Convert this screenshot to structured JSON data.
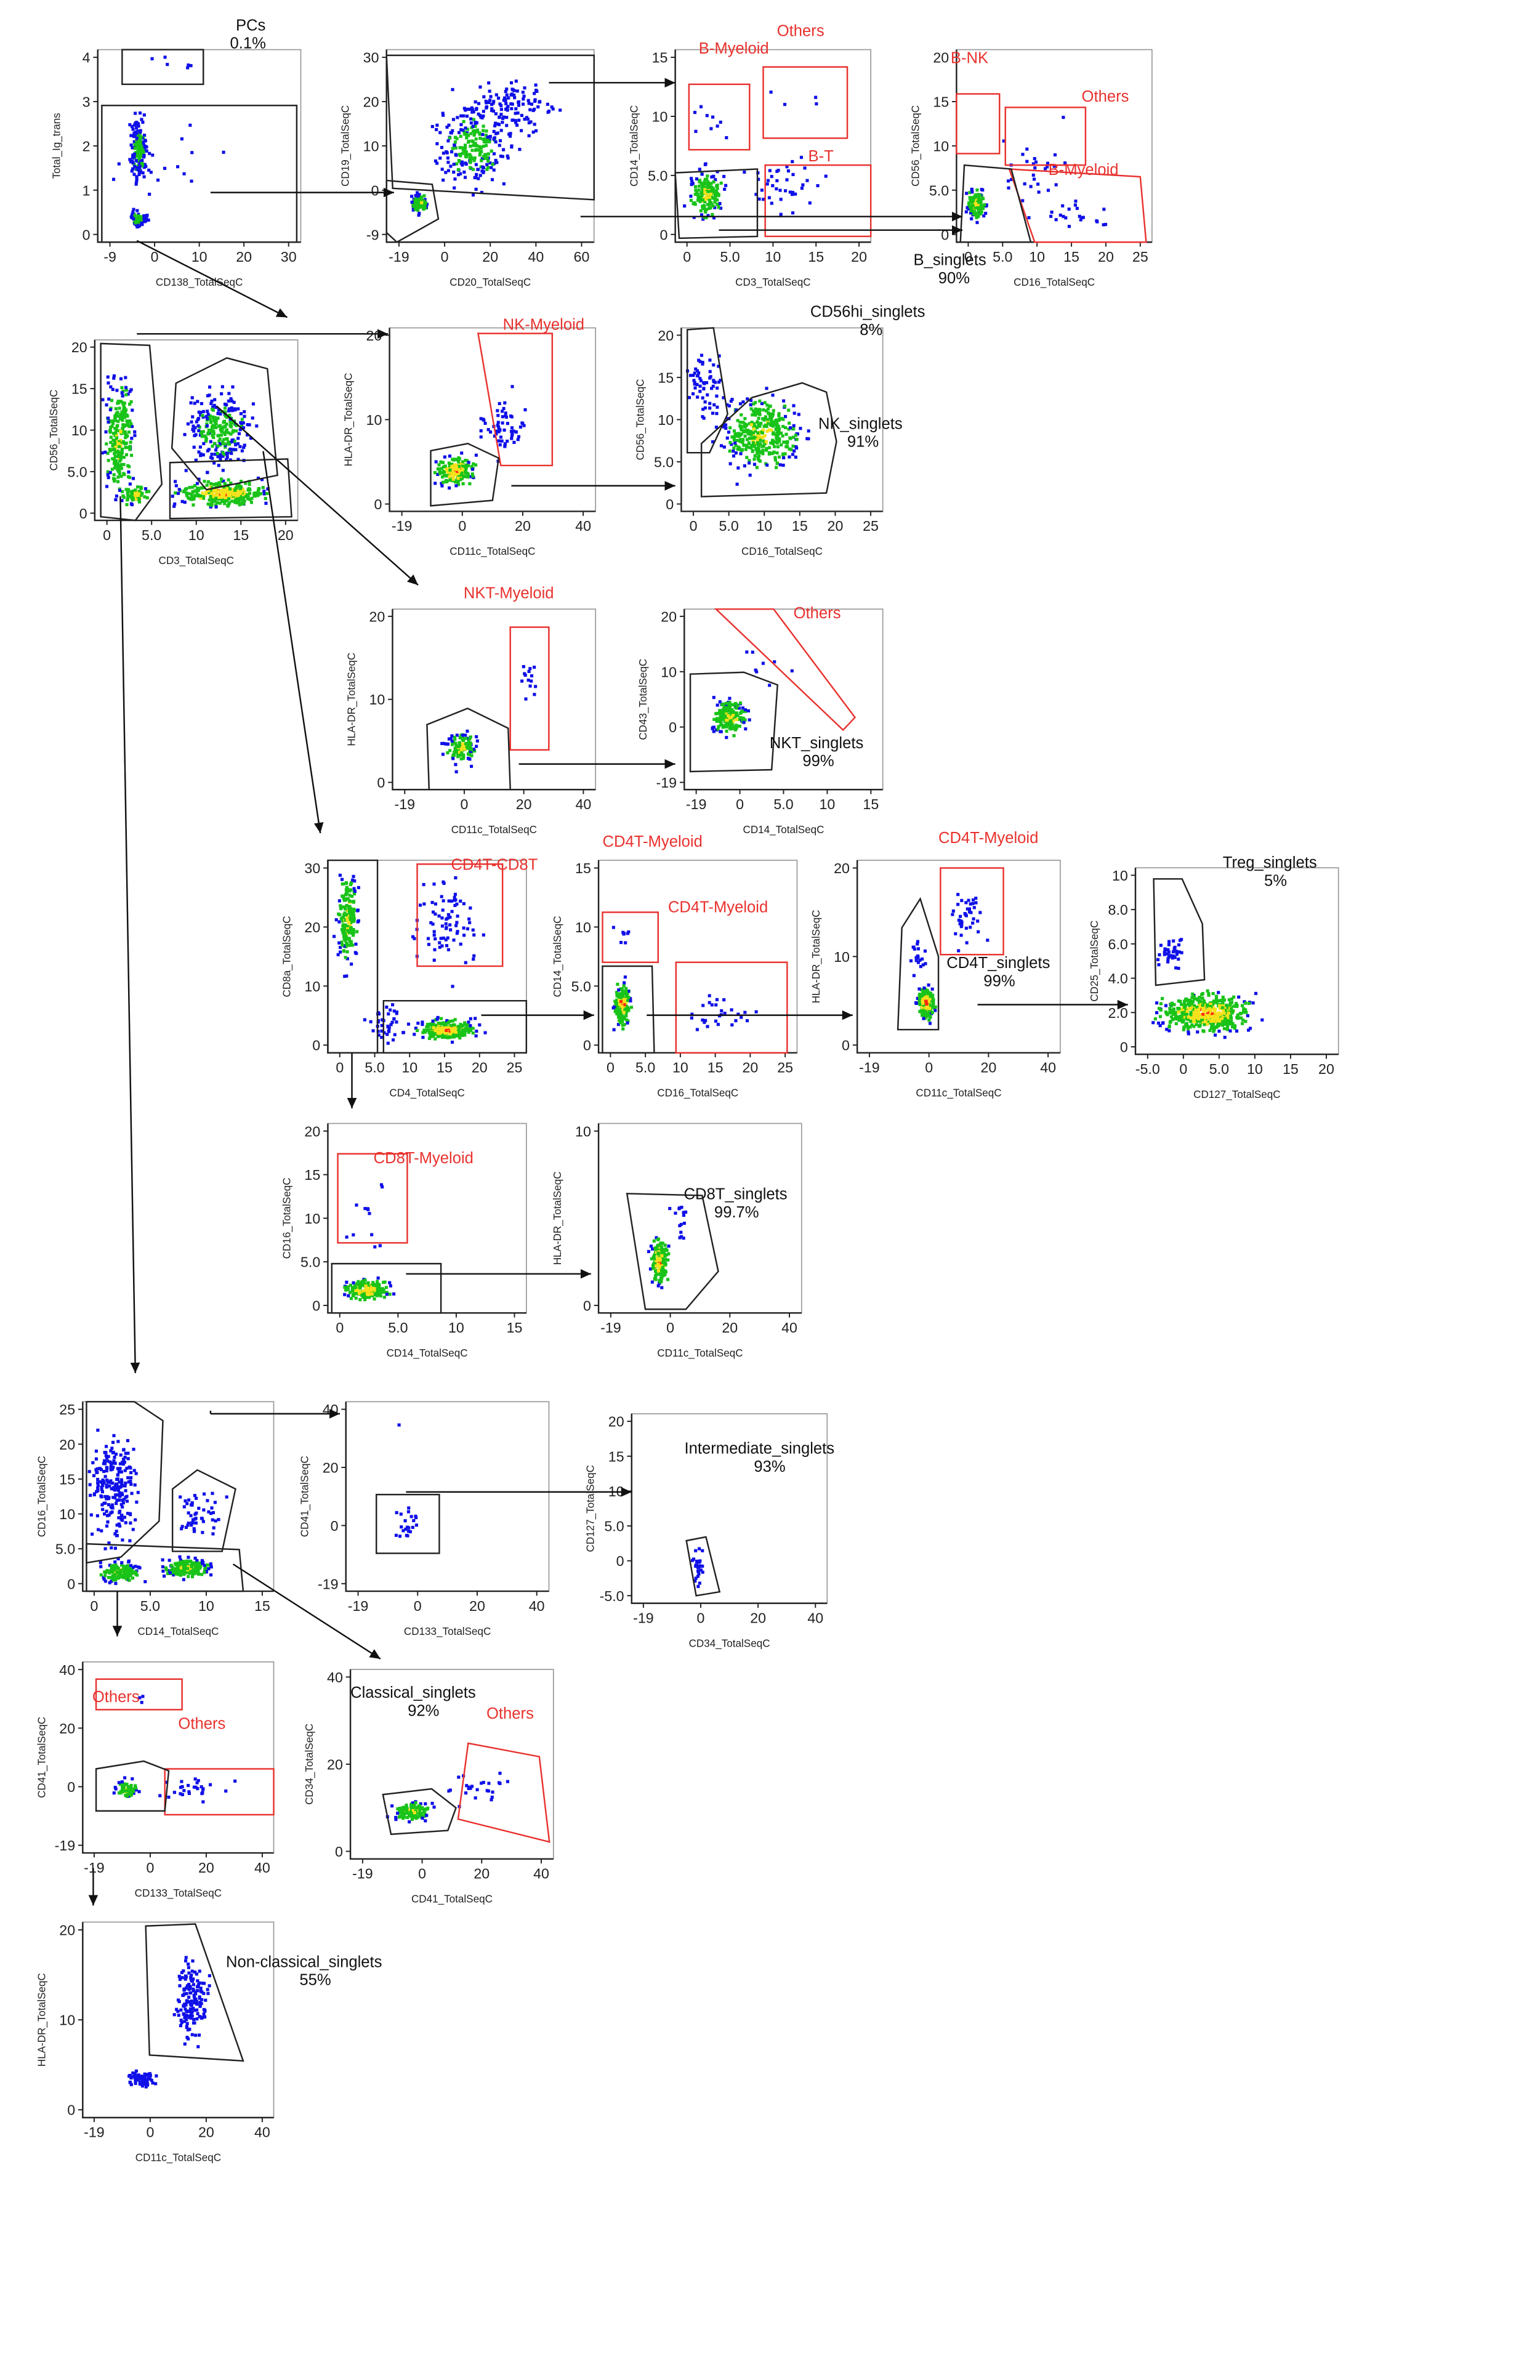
{
  "colors": {
    "gate": "#222222",
    "alt_gate": "#e8322e",
    "dot": "#1010e8",
    "dense_mid": "#19c319",
    "dense_hi": "#f6e21c",
    "dense_top": "#ff2a10",
    "axis": "#222222",
    "frame": "#9a9a9a"
  },
  "panels": [
    {
      "id": "pcs",
      "xlabel": "CD138_TotalSeqC",
      "ylabel": "Total_Ig_trans",
      "xticks": [
        "-9",
        "0",
        "10",
        "20",
        "30"
      ],
      "yticks": [
        "4",
        "3",
        "2",
        "1",
        "0"
      ],
      "gates": [
        {
          "label": "PCs",
          "pct": "0.1%",
          "red": false
        },
        {
          "label": "",
          "pct": "",
          "red": false
        }
      ]
    },
    {
      "id": "b-cd19",
      "xlabel": "CD20_TotalSeqC",
      "ylabel": "CD19_TotalSeqC",
      "xticks": [
        "-19",
        "0",
        "20",
        "40",
        "60"
      ],
      "yticks": [
        "30",
        "20",
        "10",
        "0",
        "-9"
      ],
      "gates": [
        {
          "label": "",
          "pct": "",
          "red": false
        },
        {
          "label": "",
          "pct": "",
          "red": false
        }
      ]
    },
    {
      "id": "b-cd14",
      "xlabel": "CD3_TotalSeqC",
      "ylabel": "CD14_TotalSeqC",
      "xticks": [
        "0",
        "5.0",
        "10",
        "15",
        "20"
      ],
      "yticks": [
        "15",
        "10",
        "5.0",
        "0"
      ],
      "gates": [
        {
          "label": "B-Myeloid",
          "pct": "",
          "red": true
        },
        {
          "label": "Others",
          "pct": "",
          "red": true
        },
        {
          "label": "B-T",
          "pct": "",
          "red": true
        },
        {
          "label": "",
          "pct": "",
          "red": false
        }
      ]
    },
    {
      "id": "b-cd56",
      "xlabel": "CD16_TotalSeqC",
      "ylabel": "CD56_TotalSeqC",
      "xticks": [
        "0",
        "5.0",
        "10",
        "15",
        "20",
        "25"
      ],
      "yticks": [
        "20",
        "15",
        "10",
        "5.0",
        "0"
      ],
      "gates": [
        {
          "label": "B-NK",
          "pct": "",
          "red": true
        },
        {
          "label": "Others",
          "pct": "",
          "red": true
        },
        {
          "label": "B-Myeloid",
          "pct": "",
          "red": true
        },
        {
          "label": "B_singlets",
          "pct": "90%",
          "red": false
        }
      ]
    },
    {
      "id": "t-cd56",
      "xlabel": "CD3_TotalSeqC",
      "ylabel": "CD56_TotalSeqC",
      "xticks": [
        "0",
        "5.0",
        "10",
        "15",
        "20"
      ],
      "yticks": [
        "20",
        "15",
        "10",
        "5.0",
        "0"
      ],
      "gates": [
        {
          "label": "",
          "pct": "",
          "red": false
        },
        {
          "label": "",
          "pct": "",
          "red": false
        },
        {
          "label": "",
          "pct": "",
          "red": false
        }
      ]
    },
    {
      "id": "nk-hladr",
      "xlabel": "CD11c_TotalSeqC",
      "ylabel": "HLA-DR_TotalSeqC",
      "xticks": [
        "-19",
        "0",
        "20",
        "40"
      ],
      "yticks": [
        "20",
        "10",
        "0"
      ],
      "gates": [
        {
          "label": "NK-Myeloid",
          "pct": "",
          "red": true
        },
        {
          "label": "",
          "pct": "",
          "red": false
        }
      ]
    },
    {
      "id": "nk-cd56",
      "xlabel": "CD16_TotalSeqC",
      "ylabel": "CD56_TotalSeqC",
      "xticks": [
        "0",
        "5.0",
        "10",
        "15",
        "20",
        "25"
      ],
      "yticks": [
        "20",
        "15",
        "10",
        "5.0",
        "0"
      ],
      "gates": [
        {
          "label": "CD56hi_singlets",
          "pct": "8%",
          "red": false
        },
        {
          "label": "NK_singlets",
          "pct": "91%",
          "red": false
        }
      ]
    },
    {
      "id": "nkt-hladr",
      "xlabel": "CD11c_TotalSeqC",
      "ylabel": "HLA-DR_TotalSeqC",
      "xticks": [
        "-19",
        "0",
        "20",
        "40"
      ],
      "yticks": [
        "20",
        "10",
        "0"
      ],
      "gates": [
        {
          "label": "NKT-Myeloid",
          "pct": "",
          "red": true
        },
        {
          "label": "",
          "pct": "",
          "red": false
        }
      ]
    },
    {
      "id": "nkt-cd43",
      "xlabel": "CD14_TotalSeqC",
      "ylabel": "CD43_TotalSeqC",
      "xticks": [
        "-19",
        "0",
        "5.0",
        "10",
        "15"
      ],
      "yticks": [
        "20",
        "10",
        "0",
        "-19"
      ],
      "gates": [
        {
          "label": "Others",
          "pct": "",
          "red": true
        },
        {
          "label": "NKT_singlets",
          "pct": "99%",
          "red": false
        }
      ]
    },
    {
      "id": "t-cd8",
      "xlabel": "CD4_TotalSeqC",
      "ylabel": "CD8a_TotalSeqC",
      "xticks": [
        "0",
        "5.0",
        "10",
        "15",
        "20",
        "25"
      ],
      "yticks": [
        "30",
        "20",
        "10",
        "0"
      ],
      "gates": [
        {
          "label": "CD4T-CD8T",
          "pct": "",
          "red": true
        },
        {
          "label": "",
          "pct": "",
          "red": false
        },
        {
          "label": "",
          "pct": "",
          "red": false
        }
      ]
    },
    {
      "id": "cd4-cd14",
      "xlabel": "CD16_TotalSeqC",
      "ylabel": "CD14_TotalSeqC",
      "xticks": [
        "0",
        "5.0",
        "10",
        "15",
        "20",
        "25"
      ],
      "yticks": [
        "15",
        "10",
        "5.0",
        "0"
      ],
      "gates": [
        {
          "label": "CD4T-Myeloid",
          "pct": "",
          "red": true
        },
        {
          "label": "CD4T-Myeloid",
          "pct": "",
          "red": true
        },
        {
          "label": "",
          "pct": "",
          "red": false
        }
      ]
    },
    {
      "id": "cd4-hladr",
      "xlabel": "CD11c_TotalSeqC",
      "ylabel": "HLA-DR_TotalSeqC",
      "xticks": [
        "-19",
        "0",
        "20",
        "40"
      ],
      "yticks": [
        "20",
        "10",
        "0"
      ],
      "gates": [
        {
          "label": "CD4T-Myeloid",
          "pct": "",
          "red": true
        },
        {
          "label": "CD4T_singlets",
          "pct": "99%",
          "red": false
        }
      ]
    },
    {
      "id": "treg",
      "xlabel": "CD127_TotalSeqC",
      "ylabel": "CD25_TotalSeqC",
      "xticks": [
        "-5.0",
        "0",
        "5.0",
        "10",
        "15",
        "20"
      ],
      "yticks": [
        "10",
        "8.0",
        "6.0",
        "4.0",
        "2.0",
        "0"
      ],
      "gates": [
        {
          "label": "Treg_singlets",
          "pct": "5%",
          "red": false
        }
      ]
    },
    {
      "id": "cd8-cd16",
      "xlabel": "CD14_TotalSeqC",
      "ylabel": "CD16_TotalSeqC",
      "xticks": [
        "0",
        "5.0",
        "10",
        "15"
      ],
      "yticks": [
        "20",
        "15",
        "10",
        "5.0",
        "0"
      ],
      "gates": [
        {
          "label": "CD8T-Myeloid",
          "pct": "",
          "red": true
        },
        {
          "label": "",
          "pct": "",
          "red": false
        }
      ]
    },
    {
      "id": "cd8-hladr",
      "xlabel": "CD11c_TotalSeqC",
      "ylabel": "HLA-DR_TotalSeqC",
      "xticks": [
        "-19",
        "0",
        "20",
        "40"
      ],
      "yticks": [
        "10",
        "0"
      ],
      "gates": [
        {
          "label": "CD8T_singlets",
          "pct": "99.7%",
          "red": false
        }
      ]
    },
    {
      "id": "mono-cd16",
      "xlabel": "CD14_TotalSeqC",
      "ylabel": "CD16_TotalSeqC",
      "xticks": [
        "0",
        "5.0",
        "10",
        "15"
      ],
      "yticks": [
        "25",
        "20",
        "15",
        "10",
        "5.0",
        "0"
      ],
      "gates": [
        {
          "label": "",
          "pct": "",
          "red": false
        },
        {
          "label": "",
          "pct": "",
          "red": false
        },
        {
          "label": "",
          "pct": "",
          "red": false
        }
      ]
    },
    {
      "id": "int-cd41",
      "xlabel": "CD133_TotalSeqC",
      "ylabel": "CD41_TotalSeqC",
      "xticks": [
        "-19",
        "0",
        "20",
        "40"
      ],
      "yticks": [
        "40",
        "20",
        "0",
        "-19"
      ],
      "gates": [
        {
          "label": "",
          "pct": "",
          "red": false
        }
      ]
    },
    {
      "id": "int-cd127",
      "xlabel": "CD34_TotalSeqC",
      "ylabel": "CD127_TotalSeqC",
      "xticks": [
        "-19",
        "0",
        "20",
        "40"
      ],
      "yticks": [
        "20",
        "15",
        "10",
        "5.0",
        "0",
        "-5.0"
      ],
      "gates": [
        {
          "label": "Intermediate_singlets",
          "pct": "93%",
          "red": false
        }
      ]
    },
    {
      "id": "cls-cd41",
      "xlabel": "CD133_TotalSeqC",
      "ylabel": "CD41_TotalSeqC",
      "xticks": [
        "-19",
        "0",
        "20",
        "40"
      ],
      "yticks": [
        "40",
        "20",
        "0",
        "-19"
      ],
      "gates": [
        {
          "label": "Others",
          "pct": "",
          "red": true
        },
        {
          "label": "Others",
          "pct": "",
          "red": true
        },
        {
          "label": "",
          "pct": "",
          "red": false
        }
      ]
    },
    {
      "id": "cls-cd34",
      "xlabel": "CD41_TotalSeqC",
      "ylabel": "CD34_TotalSeqC",
      "xticks": [
        "-19",
        "0",
        "20",
        "40"
      ],
      "yticks": [
        "40",
        "20",
        "0"
      ],
      "gates": [
        {
          "label": "Classical_singlets",
          "pct": "92%",
          "red": false
        },
        {
          "label": "Others",
          "pct": "",
          "red": true
        }
      ]
    },
    {
      "id": "ncl-hladr",
      "xlabel": "CD11c_TotalSeqC",
      "ylabel": "HLA-DR_TotalSeqC",
      "xticks": [
        "-19",
        "0",
        "20",
        "40"
      ],
      "yticks": [
        "20",
        "10",
        "0"
      ],
      "gates": [
        {
          "label": "Non-classical_singlets",
          "pct": "55%",
          "red": false
        }
      ]
    }
  ]
}
